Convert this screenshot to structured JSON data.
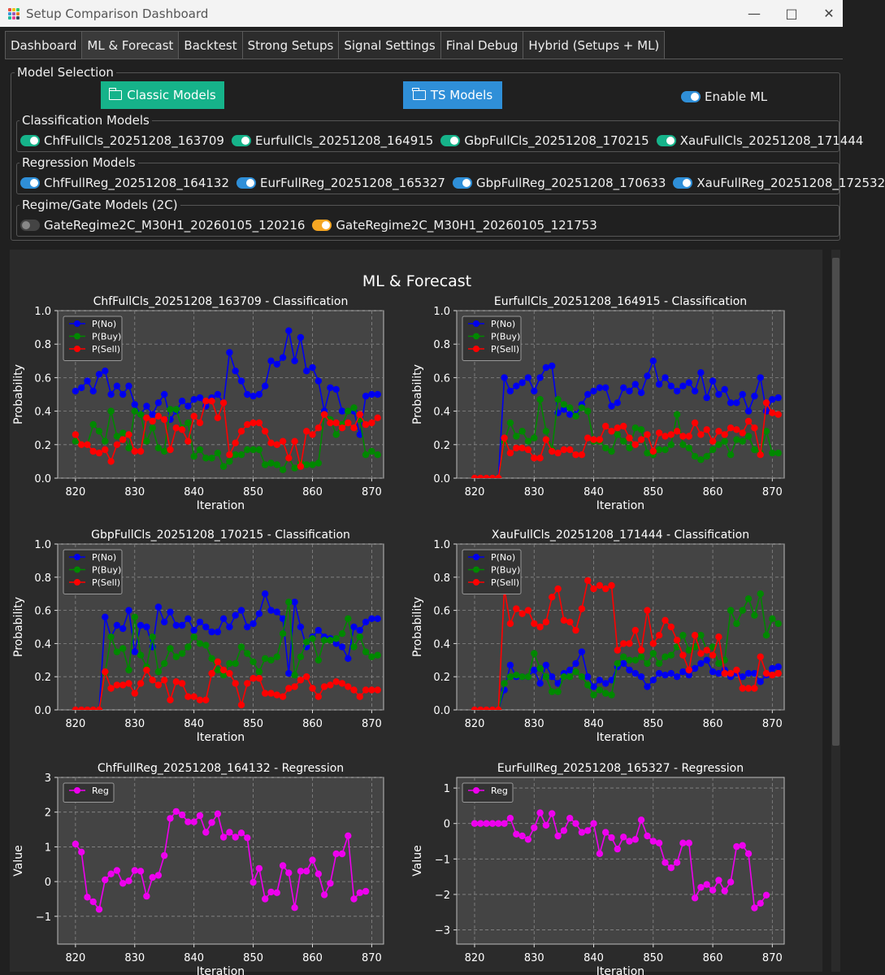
{
  "window": {
    "title": "Setup Comparison Dashboard"
  },
  "tabs": [
    {
      "label": "Dashboard",
      "active": false
    },
    {
      "label": "ML & Forecast",
      "active": true
    },
    {
      "label": "Backtest",
      "active": false
    },
    {
      "label": "Strong Setups",
      "active": false
    },
    {
      "label": "Signal Settings",
      "active": false
    },
    {
      "label": "Final Debug",
      "active": false
    },
    {
      "label": "Hybrid (Setups + ML)",
      "active": false
    }
  ],
  "model_selection": {
    "title": "Model Selection",
    "classic_button": "Classic Models",
    "ts_button": "TS Models",
    "enable_ml": {
      "label": "Enable ML",
      "on": true
    },
    "colors": {
      "classic": "#16b38a",
      "ts": "#2f8fd8",
      "toggle_cls": "#16b38a",
      "toggle_reg": "#2f8fd8",
      "toggle_gate": "#f5a623"
    }
  },
  "classification_models": {
    "title": "Classification Models",
    "items": [
      {
        "label": "ChfFullCls_20251208_163709",
        "on": true
      },
      {
        "label": "EurfullCls_20251208_164915",
        "on": true
      },
      {
        "label": "GbpFullCls_20251208_170215",
        "on": true
      },
      {
        "label": "XauFullCls_20251208_171444",
        "on": true
      }
    ]
  },
  "regression_models": {
    "title": "Regression Models",
    "items": [
      {
        "label": "ChfFullReg_20251208_164132",
        "on": true
      },
      {
        "label": "EurFullReg_20251208_165327",
        "on": true
      },
      {
        "label": "GbpFullReg_20251208_170633",
        "on": true
      },
      {
        "label": "XauFullReg_20251208_172532",
        "on": true
      }
    ]
  },
  "gate_models": {
    "title": "Regime/Gate Models (2C)",
    "items": [
      {
        "label": "GateRegime2C_M30H1_20260105_120216",
        "on": false
      },
      {
        "label": "GateRegime2C_M30H1_20260105_121753",
        "on": true
      }
    ]
  },
  "figure_title": "ML & Forecast",
  "chart_data": [
    {
      "type": "line",
      "title": "ChfFullCls_20251208_163709 - Classification",
      "xlabel": "Iteration",
      "ylabel": "Probability",
      "xlim": [
        817,
        872
      ],
      "ylim": [
        0,
        1
      ],
      "xticks": [
        820,
        830,
        840,
        850,
        860,
        870
      ],
      "yticks": [
        "0.0",
        "0.2",
        "0.4",
        "0.6",
        "0.8",
        "1.0"
      ],
      "legend": "top-left",
      "x_start": 820,
      "series": [
        {
          "name": "P(No)",
          "color": "#0000ee",
          "values": [
            0.52,
            0.54,
            0.58,
            0.52,
            0.62,
            0.64,
            0.5,
            0.55,
            0.5,
            0.55,
            0.44,
            0.38,
            0.43,
            0.38,
            0.45,
            0.5,
            0.35,
            0.4,
            0.46,
            0.43,
            0.47,
            0.48,
            0.43,
            0.48,
            0.5,
            0.45,
            0.75,
            0.64,
            0.58,
            0.5,
            0.49,
            0.5,
            0.55,
            0.7,
            0.68,
            0.72,
            0.88,
            0.7,
            0.84,
            0.64,
            0.66,
            0.58,
            0.4,
            0.54,
            0.53,
            0.4,
            0.4,
            0.4,
            0.26,
            0.49,
            0.5,
            0.5
          ]
        },
        {
          "name": "P(Buy)",
          "color": "#008800",
          "values": [
            0.22,
            0.2,
            0.2,
            0.32,
            0.28,
            0.22,
            0.4,
            0.25,
            0.27,
            0.18,
            0.4,
            0.38,
            0.22,
            0.3,
            0.18,
            0.16,
            0.41,
            0.41,
            0.3,
            0.33,
            0.13,
            0.17,
            0.12,
            0.12,
            0.15,
            0.07,
            0.1,
            0.14,
            0.14,
            0.17,
            0.17,
            0.17,
            0.08,
            0.09,
            0.08,
            0.05,
            0.12,
            0.06,
            0.09,
            0.08,
            0.08,
            0.09,
            0.38,
            0.35,
            0.26,
            0.32,
            0.4,
            0.42,
            0.35,
            0.14,
            0.16,
            0.14
          ]
        },
        {
          "name": "P(Sell)",
          "color": "#ff0000",
          "values": [
            0.26,
            0.2,
            0.2,
            0.16,
            0.15,
            0.17,
            0.1,
            0.2,
            0.23,
            0.26,
            0.16,
            0.16,
            0.36,
            0.34,
            0.37,
            0.35,
            0.17,
            0.3,
            0.29,
            0.22,
            0.37,
            0.33,
            0.46,
            0.46,
            0.36,
            0.45,
            0.14,
            0.21,
            0.28,
            0.32,
            0.33,
            0.33,
            0.28,
            0.21,
            0.2,
            0.22,
            0.12,
            0.22,
            0.07,
            0.28,
            0.26,
            0.3,
            0.38,
            0.33,
            0.33,
            0.3,
            0.33,
            0.3,
            0.38,
            0.32,
            0.33,
            0.36
          ]
        }
      ]
    },
    {
      "type": "line",
      "title": "EurfullCls_20251208_164915 - Classification",
      "xlabel": "Iteration",
      "ylabel": "Probability",
      "xlim": [
        817,
        872
      ],
      "ylim": [
        0,
        1
      ],
      "xticks": [
        820,
        830,
        840,
        850,
        860,
        870
      ],
      "yticks": [
        "0.0",
        "0.2",
        "0.4",
        "0.6",
        "0.8",
        "1.0"
      ],
      "legend": "top-left",
      "x_start": 820,
      "series": [
        {
          "name": "P(No)",
          "color": "#0000ee",
          "values": [
            0,
            0,
            0,
            0,
            0,
            0.6,
            0.52,
            0.55,
            0.57,
            0.6,
            0.52,
            0.6,
            0.66,
            0.67,
            0.39,
            0.41,
            0.38,
            0.38,
            0.44,
            0.5,
            0.52,
            0.54,
            0.54,
            0.43,
            0.45,
            0.54,
            0.52,
            0.56,
            0.51,
            0.61,
            0.7,
            0.56,
            0.6,
            0.55,
            0.52,
            0.55,
            0.57,
            0.52,
            0.63,
            0.48,
            0.58,
            0.5,
            0.53,
            0.45,
            0.45,
            0.5,
            0.4,
            0.49,
            0.6,
            0.4,
            0.47,
            0.48
          ]
        },
        {
          "name": "P(Buy)",
          "color": "#008800",
          "values": [
            0,
            0,
            0,
            0,
            0,
            0.22,
            0.33,
            0.25,
            0.28,
            0.22,
            0.24,
            0.47,
            0.28,
            0.17,
            0.47,
            0.44,
            0.42,
            0.37,
            0.42,
            0.4,
            0.22,
            0.22,
            0.18,
            0.16,
            0.26,
            0.22,
            0.18,
            0.3,
            0.29,
            0.15,
            0.14,
            0.17,
            0.17,
            0.2,
            0.38,
            0.2,
            0.18,
            0.13,
            0.11,
            0.13,
            0.17,
            0.2,
            0.22,
            0.14,
            0.23,
            0.22,
            0.25,
            0.17,
            0.15,
            0.28,
            0.15,
            0.15
          ]
        },
        {
          "name": "P(Sell)",
          "color": "#ff0000",
          "values": [
            0,
            0,
            0,
            0,
            0,
            0.24,
            0.15,
            0.18,
            0.18,
            0.17,
            0.12,
            0.12,
            0.23,
            0.16,
            0.15,
            0.17,
            0.17,
            0.14,
            0.14,
            0.24,
            0.23,
            0.23,
            0.31,
            0.28,
            0.3,
            0.31,
            0.24,
            0.2,
            0.23,
            0.26,
            0.16,
            0.27,
            0.25,
            0.26,
            0.28,
            0.25,
            0.25,
            0.33,
            0.26,
            0.29,
            0.22,
            0.28,
            0.26,
            0.3,
            0.29,
            0.27,
            0.34,
            0.3,
            0.14,
            0.45,
            0.39,
            0.38
          ]
        }
      ]
    },
    {
      "type": "line",
      "title": "GbpFullCls_20251208_170215 - Classification",
      "xlabel": "Iteration",
      "ylabel": "Probability",
      "xlim": [
        817,
        872
      ],
      "ylim": [
        0,
        1
      ],
      "xticks": [
        820,
        830,
        840,
        850,
        860,
        870
      ],
      "yticks": [
        "0.0",
        "0.2",
        "0.4",
        "0.6",
        "0.8",
        "1.0"
      ],
      "legend": "top-left",
      "x_start": 820,
      "series": [
        {
          "name": "P(No)",
          "color": "#0000ee",
          "values": [
            0,
            0,
            0,
            0,
            0,
            0.56,
            0.44,
            0.51,
            0.49,
            0.6,
            0.35,
            0.51,
            0.5,
            0.38,
            0.62,
            0.53,
            0.59,
            0.51,
            0.51,
            0.55,
            0.48,
            0.53,
            0.5,
            0.47,
            0.47,
            0.55,
            0.5,
            0.57,
            0.6,
            0.5,
            0.52,
            0.58,
            0.7,
            0.6,
            0.59,
            0.55,
            0.22,
            0.65,
            0.5,
            0.38,
            0.44,
            0.48,
            0.44,
            0.43,
            0.4,
            0.38,
            0.31,
            0.5,
            0.48,
            0.53,
            0.55,
            0.55
          ]
        },
        {
          "name": "P(Buy)",
          "color": "#008800",
          "values": [
            0,
            0,
            0,
            0,
            0,
            0.22,
            0.44,
            0.35,
            0.37,
            0.24,
            0.56,
            0.33,
            0.26,
            0.44,
            0.23,
            0.28,
            0.37,
            0.32,
            0.34,
            0.38,
            0.44,
            0.4,
            0.39,
            0.31,
            0.24,
            0.21,
            0.28,
            0.28,
            0.38,
            0.34,
            0.29,
            0.23,
            0.31,
            0.3,
            0.32,
            0.46,
            0.65,
            0.21,
            0.32,
            0.41,
            0.43,
            0.3,
            0.42,
            0.42,
            0.43,
            0.46,
            0.55,
            0.38,
            0.44,
            0.35,
            0.32,
            0.33
          ]
        },
        {
          "name": "P(Sell)",
          "color": "#ff0000",
          "values": [
            0,
            0,
            0,
            0,
            0,
            0.23,
            0.13,
            0.15,
            0.15,
            0.16,
            0.1,
            0.16,
            0.24,
            0.18,
            0.15,
            0.18,
            0.06,
            0.17,
            0.16,
            0.08,
            0.08,
            0.06,
            0.06,
            0.22,
            0.29,
            0.24,
            0.22,
            0.16,
            0.03,
            0.16,
            0.19,
            0.19,
            0.1,
            0.1,
            0.09,
            0.08,
            0.13,
            0.14,
            0.18,
            0.2,
            0.13,
            0.08,
            0.14,
            0.15,
            0.17,
            0.16,
            0.14,
            0.12,
            0.08,
            0.12,
            0.12,
            0.12
          ]
        }
      ]
    },
    {
      "type": "line",
      "title": "XauFullCls_20251208_171444 - Classification",
      "xlabel": "Iteration",
      "ylabel": "Probability",
      "xlim": [
        817,
        872
      ],
      "ylim": [
        0,
        1
      ],
      "xticks": [
        820,
        830,
        840,
        850,
        860,
        870
      ],
      "yticks": [
        "0.0",
        "0.2",
        "0.4",
        "0.6",
        "0.8",
        "1.0"
      ],
      "legend": "top-left",
      "x_start": 820,
      "series": [
        {
          "name": "P(No)",
          "color": "#0000ee",
          "values": [
            0,
            0,
            0,
            0,
            0,
            0.12,
            0.27,
            0.2,
            0.2,
            0.2,
            0.24,
            0.16,
            0.27,
            0.2,
            0.16,
            0.22,
            0.24,
            0.28,
            0.35,
            0.2,
            0.14,
            0.18,
            0.16,
            0.18,
            0.26,
            0.28,
            0.24,
            0.22,
            0.2,
            0.14,
            0.18,
            0.22,
            0.21,
            0.22,
            0.2,
            0.23,
            0.21,
            0.25,
            0.28,
            0.3,
            0.23,
            0.22,
            0.24,
            0.2,
            0.22,
            0.2,
            0.22,
            0.22,
            0.17,
            0.21,
            0.25,
            0.26
          ]
        },
        {
          "name": "P(Buy)",
          "color": "#008800",
          "values": [
            0,
            0,
            0,
            0,
            0,
            0.16,
            0.2,
            0.21,
            0.2,
            0.2,
            0.34,
            0.25,
            0.2,
            0.11,
            0.11,
            0.2,
            0.2,
            0.23,
            0.2,
            0.15,
            0.09,
            0.12,
            0.1,
            0.09,
            0.28,
            0.32,
            0.3,
            0.3,
            0.32,
            0.28,
            0.34,
            0.28,
            0.32,
            0.33,
            0.38,
            0.45,
            0.36,
            0.38,
            0.45,
            0.36,
            0.38,
            0.28,
            0.3,
            0.6,
            0.52,
            0.6,
            0.67,
            0.57,
            0.7,
            0.45,
            0.55,
            0.52
          ]
        },
        {
          "name": "P(Sell)",
          "color": "#ff0000",
          "values": [
            0,
            0,
            0,
            0,
            0,
            0.73,
            0.52,
            0.61,
            0.58,
            0.6,
            0.52,
            0.5,
            0.53,
            0.68,
            0.73,
            0.54,
            0.53,
            0.48,
            0.61,
            0.78,
            0.73,
            0.75,
            0.73,
            0.75,
            0.36,
            0.4,
            0.4,
            0.48,
            0.36,
            0.6,
            0.4,
            0.45,
            0.54,
            0.5,
            0.42,
            0.33,
            0.24,
            0.45,
            0.34,
            0.36,
            0.33,
            0.44,
            0.22,
            0.22,
            0.24,
            0.13,
            0.13,
            0.13,
            0.32,
            0.22,
            0.21,
            0.22
          ]
        }
      ]
    },
    {
      "type": "line",
      "title": "ChfFullReg_20251208_164132 - Regression",
      "xlabel": "Iteration",
      "ylabel": "Value",
      "xlim": [
        817,
        872
      ],
      "ylim": [
        -1.8,
        3
      ],
      "xticks": [
        820,
        830,
        840,
        850,
        860,
        870
      ],
      "yticks": [
        "−1",
        "0",
        "1",
        "2",
        "3"
      ],
      "legend": "top-left",
      "x_start": 820,
      "series": [
        {
          "name": "Reg",
          "color": "#ee00ee",
          "values": [
            1.08,
            0.85,
            -0.45,
            -0.58,
            -0.8,
            0.05,
            0.22,
            0.32,
            -0.05,
            0.02,
            0.32,
            0.3,
            -0.42,
            0.12,
            0.18,
            0.75,
            1.82,
            2.02,
            1.92,
            1.72,
            1.72,
            1.9,
            1.42,
            1.7,
            1.95,
            1.28,
            1.42,
            1.28,
            1.4,
            1.26,
            -0.02,
            0.38,
            -0.5,
            -0.3,
            -0.32,
            0.46,
            0.25,
            -0.75,
            0.3,
            0.3,
            0.62,
            0.22,
            -0.38,
            -0.05,
            0.8,
            0.8,
            1.32,
            -0.5,
            -0.32,
            -0.28
          ]
        }
      ]
    },
    {
      "type": "line",
      "title": "EurFullReg_20251208_165327 - Regression",
      "xlabel": "Iteration",
      "ylabel": "Value",
      "xlim": [
        817,
        872
      ],
      "ylim": [
        -3.4,
        1.3
      ],
      "xticks": [
        820,
        830,
        840,
        850,
        860,
        870
      ],
      "yticks": [
        "−3",
        "−2",
        "−1",
        "0",
        "1"
      ],
      "legend": "top-left",
      "x_start": 820,
      "series": [
        {
          "name": "Reg",
          "color": "#ee00ee",
          "values": [
            0,
            0,
            0,
            0,
            0,
            0,
            0.15,
            -0.3,
            -0.35,
            -0.45,
            -0.12,
            0.3,
            -0.05,
            0.28,
            -0.35,
            -0.2,
            0.15,
            0.0,
            -0.25,
            -0.2,
            0.0,
            -0.85,
            -0.25,
            -0.4,
            -0.72,
            -0.38,
            -0.5,
            -0.45,
            0.1,
            -0.35,
            -0.5,
            -0.55,
            -1.1,
            -1.25,
            -1.1,
            -0.55,
            -0.55,
            -2.1,
            -1.8,
            -1.72,
            -1.88,
            -1.6,
            -1.9,
            -1.65,
            -0.65,
            -0.62,
            -0.85,
            -2.38,
            -2.25,
            -2.02
          ]
        }
      ]
    }
  ]
}
